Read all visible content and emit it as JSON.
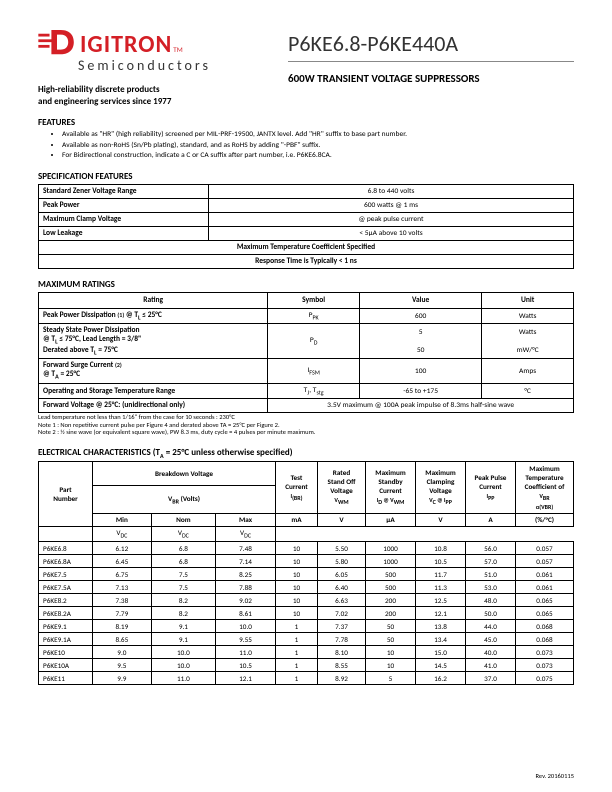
{
  "logo": {
    "name": "IGITRON",
    "tm": "TM",
    "sub": "Semiconductors"
  },
  "tagline1": "High-reliability discrete products",
  "tagline2": "and engineering services since 1977",
  "part_title": "P6KE6.8-P6KE440A",
  "subtitle": "600W TRANSIENT VOLTAGE SUPPRESSORS",
  "features_h": "FEATURES",
  "features": [
    "Available as \"HR\" (high reliability) screened per MIL-PRF-19500, JANTX level.  Add \"HR\" suffix to base part number.",
    "Available as non-RoHS (Sn/Pb plating), standard, and as RoHS by adding \"-PBF\" suffix.",
    "For Bidirectional construction, indicate a C or CA suffix after part number, i.e. P6KE6.8CA."
  ],
  "spec_h": "SPECIFICATION FEATURES",
  "spec_rows": [
    {
      "k": "Standard Zener Voltage Range",
      "v": "6.8 to 440 volts"
    },
    {
      "k": "Peak Power",
      "v": "600 watts @ 1 ms"
    },
    {
      "k": "Maximum Clamp Voltage",
      "v": "@ peak pulse current"
    },
    {
      "k": "Low Leakage",
      "v": "< 5µA above 10 volts"
    },
    {
      "k": "Maximum Temperature Coefficient Specified",
      "v": ""
    },
    {
      "k": "Response Time is Typically < 1 ns",
      "v": ""
    }
  ],
  "max_h": "MAXIMUM RATINGS",
  "max_headers": [
    "Rating",
    "Symbol",
    "Value",
    "Unit"
  ],
  "max_rows": [
    {
      "r": "Peak Power Dissipation (1) @ TL ≤ 25°C",
      "s": "PPK",
      "v": "600",
      "u": "Watts"
    },
    {
      "r": "Steady State Power Dissipation\n@ TL ≤ 75°C, Lead Length = 3/8\"\nDerated above TL = 75°C",
      "s": "PD",
      "v": "5\n\n50",
      "u": "Watts\n\nmW/°C"
    },
    {
      "r": "Forward Surge Current (2)\n@ TA = 25°C",
      "s": "IFSM",
      "v": "100",
      "u": "Amps"
    },
    {
      "r": "Operating and Storage Temperature Range",
      "s": "TJ, Tstg",
      "v": "-65 to +175",
      "u": "°C"
    },
    {
      "r": "Forward Voltage @ 25°C: (unidirectional only)",
      "s": "",
      "v": "3.5V maximum @ 100A peak impulse of 8.3ms half-sine wave",
      "u": ""
    }
  ],
  "max_notes": [
    "Lead temperature not less than 1/16\" from the case for 10 seconds : 230°C",
    "Note 1 : Non repetitive current pulse per Figure 4 and derated above TA = 25°C per Figure 2.",
    "Note 2 : ½ sine wave (or equivalent square wave), PW  8.3 ms, duty cycle = 4 pulses per minute maximum."
  ],
  "ec_h": "ELECTRICAL CHARACTERISTICS (TA = 25°C unless otherwise specified)",
  "ec_headers": {
    "pn": "Part\nNumber",
    "bv": "Breakdown Voltage",
    "vbr": "VBR (Volts)",
    "min": "Min",
    "nom": "Nom",
    "max": "Max",
    "vdc": "VDC",
    "test": "Test\nCurrent\nI(BR)",
    "ma": "mA",
    "rso": "Rated\nStand Off\nVoltage\nVWM",
    "v": "V",
    "msc": "Maximum\nStandby\nCurrent\nID @ VWM",
    "ua": "µA",
    "mcv": "Maximum\nClamping\nVoltage\nVC @ IPP",
    "v2": "V",
    "ppc": "Peak Pulse\nCurrent\nIPP",
    "a": "A",
    "mtc": "Maximum\nTemperature\nCoefficient of\nVBR\nα(VBR)",
    "pct": "(%/°C)"
  },
  "ec_rows": [
    [
      "P6KE6.8",
      "6.12",
      "6.8",
      "7.48",
      "10",
      "5.50",
      "1000",
      "10.8",
      "56.0",
      "0.057"
    ],
    [
      "P6KE6.8A",
      "6.45",
      "6.8",
      "7.14",
      "10",
      "5.80",
      "1000",
      "10.5",
      "57.0",
      "0.057"
    ],
    [
      "P6KE7.5",
      "6.75",
      "7.5",
      "8.25",
      "10",
      "6.05",
      "500",
      "11.7",
      "51.0",
      "0.061"
    ],
    [
      "P6KE7.5A",
      "7.13",
      "7.5",
      "7.88",
      "10",
      "6.40",
      "500",
      "11.3",
      "53.0",
      "0.061"
    ],
    [
      "P6KE8.2",
      "7.38",
      "8.2",
      "9.02",
      "10",
      "6.63",
      "200",
      "12.5",
      "48.0",
      "0.065"
    ],
    [
      "P6KE8.2A",
      "7.79",
      "8.2",
      "8.61",
      "10",
      "7.02",
      "200",
      "12.1",
      "50.0",
      "0.065"
    ],
    [
      "P6KE9.1",
      "8.19",
      "9.1",
      "10.0",
      "1",
      "7.37",
      "50",
      "13.8",
      "44.0",
      "0.068"
    ],
    [
      "P6KE9.1A",
      "8.65",
      "9.1",
      "9.55",
      "1",
      "7.78",
      "50",
      "13.4",
      "45.0",
      "0.068"
    ],
    [
      "P6KE10",
      "9.0",
      "10.0",
      "11.0",
      "1",
      "8.10",
      "10",
      "15.0",
      "40.0",
      "0.073"
    ],
    [
      "P6KE10A",
      "9.5",
      "10.0",
      "10.5",
      "1",
      "8.55",
      "10",
      "14.5",
      "41.0",
      "0.073"
    ],
    [
      "P6KE11",
      "9.9",
      "11.0",
      "12.1",
      "1",
      "8.92",
      "5",
      "16.2",
      "37.0",
      "0.075"
    ]
  ],
  "footer": "Rev. 20160115"
}
